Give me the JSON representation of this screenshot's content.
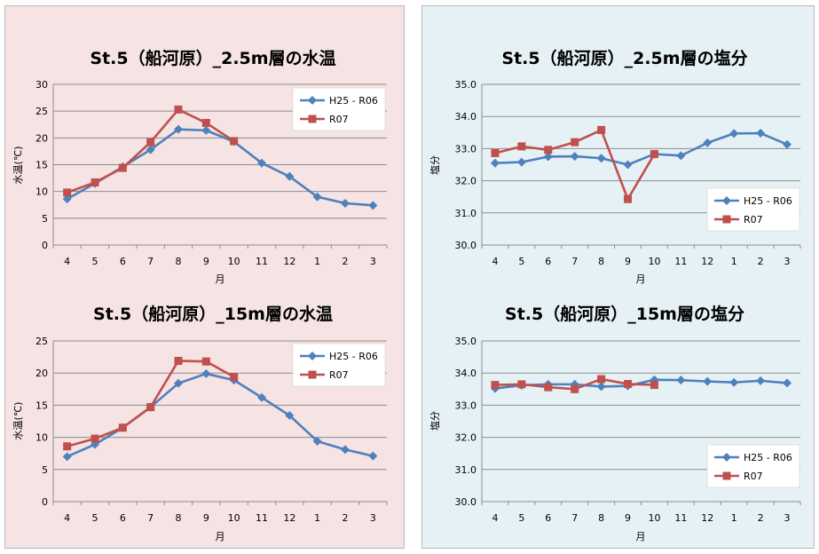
{
  "colors": {
    "left_panel_bg": "#f6e3e3",
    "right_panel_bg": "#e6f1f6",
    "series_blue": "#4f81bd",
    "series_red": "#c0504d",
    "gridline": "#8c8c8c"
  },
  "chart_data": [
    {
      "type": "line",
      "title": "St.5（船河原）_2.5m層の水温",
      "xlabel": "月",
      "ylabel": "水温(℃)",
      "categories": [
        "4",
        "5",
        "6",
        "7",
        "8",
        "9",
        "10",
        "11",
        "12",
        "1",
        "2",
        "3"
      ],
      "ylim": [
        0,
        30
      ],
      "yticks": [
        0,
        5,
        10,
        15,
        20,
        25,
        30
      ],
      "ytick_labels": [
        "0",
        "5",
        "10",
        "15",
        "20",
        "25",
        "30"
      ],
      "legend": "top-right",
      "series": [
        {
          "name": "H25 - R06",
          "values": [
            8.6,
            11.5,
            14.6,
            17.8,
            21.6,
            21.4,
            19.3,
            15.3,
            12.8,
            9.0,
            7.8,
            7.4
          ]
        },
        {
          "name": "R07",
          "values": [
            9.8,
            11.7,
            14.4,
            19.2,
            25.3,
            22.8,
            19.4,
            null,
            null,
            null,
            null,
            null
          ]
        }
      ]
    },
    {
      "type": "line",
      "title": "St.5（船河原）_15m層の水温",
      "xlabel": "月",
      "ylabel": "水温(℃)",
      "categories": [
        "4",
        "5",
        "6",
        "7",
        "8",
        "9",
        "10",
        "11",
        "12",
        "1",
        "2",
        "3"
      ],
      "ylim": [
        0,
        25
      ],
      "yticks": [
        0,
        5,
        10,
        15,
        20,
        25
      ],
      "ytick_labels": [
        "0",
        "5",
        "10",
        "15",
        "20",
        "25"
      ],
      "legend": "top-right",
      "series": [
        {
          "name": "H25 - R06",
          "values": [
            7.0,
            8.9,
            11.5,
            14.7,
            18.4,
            19.9,
            18.9,
            16.2,
            13.4,
            9.4,
            8.1,
            7.1
          ]
        },
        {
          "name": "R07",
          "values": [
            8.6,
            9.8,
            11.5,
            14.7,
            21.9,
            21.8,
            19.4,
            null,
            null,
            null,
            null,
            null
          ]
        }
      ]
    },
    {
      "type": "line",
      "title": "St.5（船河原）_2.5m層の塩分",
      "xlabel": "月",
      "ylabel": "塩分",
      "categories": [
        "4",
        "5",
        "6",
        "7",
        "8",
        "9",
        "10",
        "11",
        "12",
        "1",
        "2",
        "3"
      ],
      "ylim": [
        30.0,
        35.0
      ],
      "yticks": [
        30,
        31,
        32,
        33,
        34,
        35
      ],
      "ytick_labels": [
        "30.0",
        "31.0",
        "32.0",
        "33.0",
        "34.0",
        "35.0"
      ],
      "legend": "lower-right",
      "series": [
        {
          "name": "H25 - R06",
          "values": [
            32.55,
            32.58,
            32.75,
            32.76,
            32.7,
            32.5,
            32.83,
            32.78,
            33.18,
            33.47,
            33.48,
            33.13
          ]
        },
        {
          "name": "R07",
          "values": [
            32.86,
            33.07,
            32.96,
            33.2,
            33.58,
            31.43,
            32.83,
            null,
            null,
            null,
            null,
            null
          ]
        }
      ]
    },
    {
      "type": "line",
      "title": "St.5（船河原）_15m層の塩分",
      "xlabel": "月",
      "ylabel": "塩分",
      "categories": [
        "4",
        "5",
        "6",
        "7",
        "8",
        "9",
        "10",
        "11",
        "12",
        "1",
        "2",
        "3"
      ],
      "ylim": [
        30.0,
        35.0
      ],
      "yticks": [
        30,
        31,
        32,
        33,
        34,
        35
      ],
      "ytick_labels": [
        "30.0",
        "31.0",
        "32.0",
        "33.0",
        "34.0",
        "35.0"
      ],
      "legend": "lower-right",
      "series": [
        {
          "name": "H25 - R06",
          "values": [
            33.52,
            33.62,
            33.65,
            33.65,
            33.58,
            33.6,
            33.79,
            33.78,
            33.74,
            33.71,
            33.76,
            33.69
          ]
        },
        {
          "name": "R07",
          "values": [
            33.63,
            33.65,
            33.56,
            33.5,
            33.81,
            33.66,
            33.63,
            null,
            null,
            null,
            null,
            null
          ]
        }
      ]
    }
  ]
}
